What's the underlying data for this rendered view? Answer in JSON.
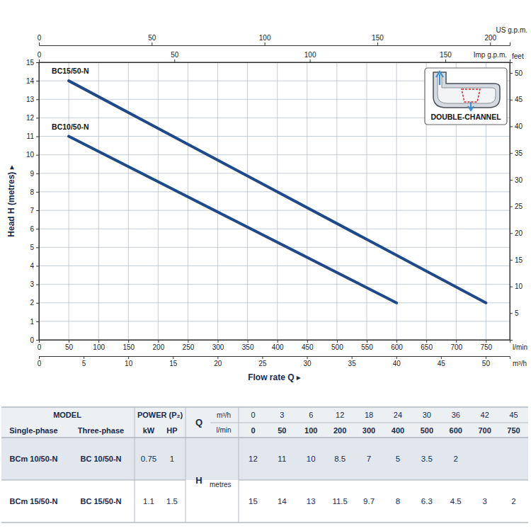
{
  "chart_data": {
    "type": "line",
    "xlabel": "Flow rate Q ▸",
    "ylabel": "Head H (metres) ▸",
    "x_unit": "l/min",
    "xlim": [
      0,
      790
    ],
    "xticks": [
      0,
      50,
      100,
      150,
      200,
      250,
      300,
      350,
      400,
      450,
      500,
      550,
      600,
      650,
      700,
      750
    ],
    "ylim": [
      0,
      15
    ],
    "yticks": [
      0,
      1,
      2,
      3,
      4,
      5,
      6,
      7,
      8,
      9,
      10,
      11,
      12,
      13,
      14,
      15
    ],
    "y2label": "feet",
    "y2lim": [
      0,
      52
    ],
    "y2ticks": [
      5,
      10,
      15,
      20,
      25,
      30,
      35,
      40,
      45,
      50
    ],
    "x2label": "m³/h",
    "x2lim": [
      0,
      52.7
    ],
    "x2ticks": [
      0,
      5,
      10,
      15,
      20,
      25,
      30,
      35,
      40,
      45,
      50
    ],
    "top_axes": [
      {
        "label": "US g.p.m.",
        "lim": [
          0,
          208.7
        ],
        "ticks": [
          0,
          50,
          100,
          150,
          200
        ]
      },
      {
        "label": "Imp g.p.m.",
        "lim": [
          0,
          173.8
        ],
        "ticks": [
          0,
          50,
          100,
          150
        ]
      }
    ],
    "grid": true,
    "annotations": [
      {
        "text": "DOUBLE-CHANNEL"
      }
    ],
    "series": [
      {
        "name": "BC15/50-N",
        "color": "#1f4a8a",
        "x": [
          50,
          750
        ],
        "values": [
          14,
          2
        ]
      },
      {
        "name": "BC10/50-N",
        "color": "#1f4a8a",
        "x": [
          50,
          600
        ],
        "values": [
          11,
          2
        ]
      }
    ]
  },
  "table": {
    "header": {
      "model": "MODEL",
      "power": "POWER (P₂)",
      "single_phase": "Single-phase",
      "three_phase": "Three-phase",
      "kw": "kW",
      "hp": "HP",
      "q": "Q",
      "q_units": [
        "m³/h",
        "l/min"
      ],
      "h": "H",
      "h_unit": "metres"
    },
    "q_m3h": [
      0,
      3,
      6,
      12,
      18,
      24,
      30,
      36,
      42,
      45
    ],
    "q_lmin": [
      0,
      50,
      100,
      200,
      300,
      400,
      500,
      600,
      700,
      750
    ],
    "rows": [
      {
        "single_phase": "BCm 10/50-N",
        "three_phase": "BC 10/50-N",
        "kw": 0.75,
        "hp": 1,
        "h": [
          12,
          11,
          10,
          8.5,
          7,
          5,
          3.5,
          2,
          null,
          null
        ]
      },
      {
        "single_phase": "BCm 15/50-N",
        "three_phase": "BC 15/50-N",
        "kw": 1.1,
        "hp": 1.5,
        "h": [
          15,
          14,
          13,
          11.5,
          9.7,
          8,
          6.3,
          4.5,
          3,
          2
        ]
      }
    ]
  }
}
